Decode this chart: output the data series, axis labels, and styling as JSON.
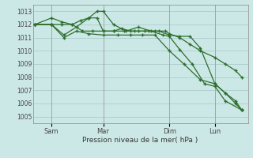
{
  "background_color": "#cce8e6",
  "grid_color": "#aacccc",
  "line_color": "#2d6e2d",
  "xlabel": "Pression niveau de la mer( hPa )",
  "ylim": [
    1004.5,
    1013.5
  ],
  "yticks": [
    1005,
    1006,
    1007,
    1008,
    1009,
    1010,
    1011,
    1012,
    1013
  ],
  "xtick_labels": [
    "Sam",
    "Mar",
    "Dim",
    "Lun"
  ],
  "xtick_positions": [
    0.08,
    0.33,
    0.65,
    0.87
  ],
  "vline_positions": [
    0.08,
    0.33,
    0.65,
    0.87
  ],
  "series": [
    {
      "x": [
        0.0,
        0.08,
        0.13,
        0.18,
        0.23,
        0.28,
        0.33,
        0.38,
        0.43,
        0.48,
        0.53,
        0.58,
        0.63,
        0.65,
        0.7,
        0.75,
        0.8,
        0.87,
        0.92,
        0.97,
        1.0
      ],
      "y": [
        1012,
        1012,
        1012,
        1012,
        1011.5,
        1011.5,
        1011.5,
        1011.5,
        1011.5,
        1011.5,
        1011.5,
        1011.5,
        1011.5,
        1011.3,
        1011.0,
        1010.5,
        1010.0,
        1009.5,
        1009.0,
        1008.5,
        1008.0
      ]
    },
    {
      "x": [
        0.0,
        0.08,
        0.13,
        0.18,
        0.22,
        0.26,
        0.3,
        0.33,
        0.38,
        0.42,
        0.46,
        0.5,
        0.55,
        0.6,
        0.65,
        0.7,
        0.75,
        0.8,
        0.87,
        0.92,
        0.97,
        1.0
      ],
      "y": [
        1012,
        1012.5,
        1012.2,
        1012.0,
        1012.3,
        1012.5,
        1012.5,
        1011.5,
        1011.5,
        1011.7,
        1011.5,
        1011.5,
        1011.5,
        1011.5,
        1011.2,
        1011.1,
        1011.1,
        1010.2,
        1007.5,
        1006.8,
        1006.2,
        1005.5
      ]
    },
    {
      "x": [
        0.0,
        0.08,
        0.14,
        0.2,
        0.26,
        0.3,
        0.33,
        0.38,
        0.44,
        0.5,
        0.56,
        0.62,
        0.65,
        0.7,
        0.76,
        0.82,
        0.87,
        0.92,
        1.0
      ],
      "y": [
        1012,
        1012,
        1011.2,
        1011.8,
        1012.5,
        1013.0,
        1013.0,
        1012.0,
        1011.5,
        1011.8,
        1011.5,
        1011.2,
        1011.1,
        1010.1,
        1009.0,
        1007.5,
        1007.3,
        1006.2,
        1005.5
      ]
    },
    {
      "x": [
        0.0,
        0.08,
        0.14,
        0.2,
        0.26,
        0.33,
        0.4,
        0.46,
        0.52,
        0.58,
        0.65,
        0.72,
        0.8,
        0.87,
        0.92,
        0.97,
        1.0
      ],
      "y": [
        1012,
        1012,
        1011.0,
        1011.5,
        1011.3,
        1011.2,
        1011.2,
        1011.2,
        1011.2,
        1011.2,
        1010.0,
        1009.0,
        1007.8,
        1007.5,
        1006.8,
        1006.0,
        1005.5
      ]
    }
  ],
  "figsize": [
    3.2,
    2.0
  ],
  "dpi": 100
}
